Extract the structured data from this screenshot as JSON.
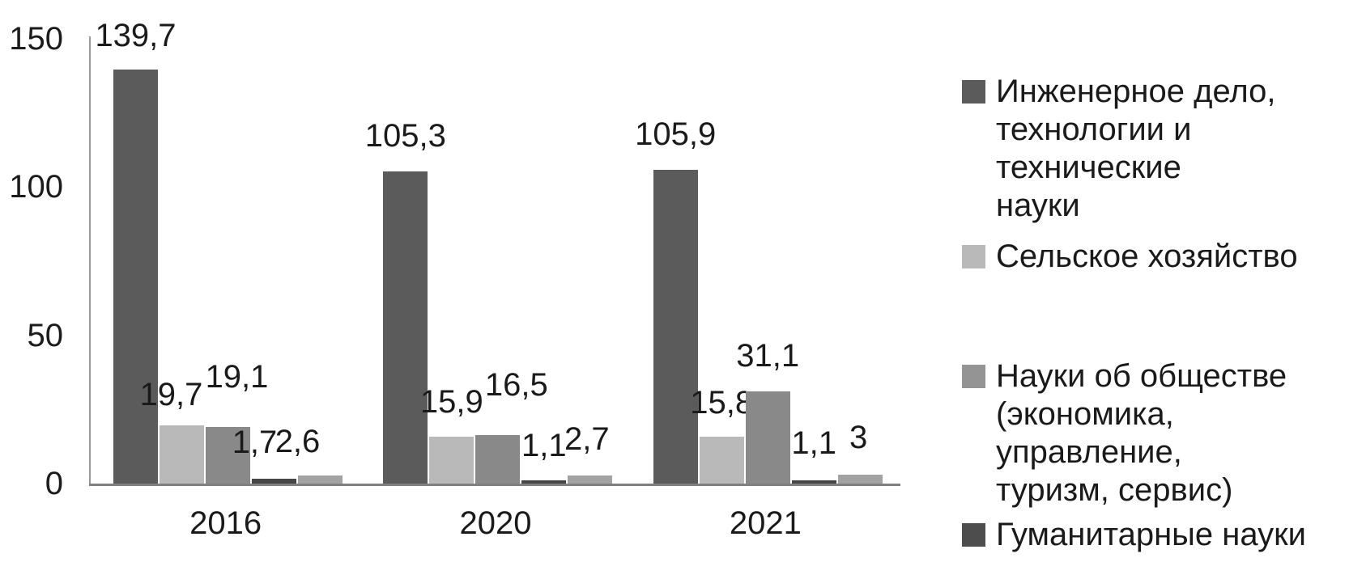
{
  "chart_data": {
    "type": "bar",
    "title": "",
    "categories": [
      "2016",
      "2020",
      "2021"
    ],
    "series": [
      {
        "name": "Инженерное дело, технологии и технические науки",
        "color": "#5b5b5b",
        "values": [
          139.7,
          105.3,
          105.9
        ],
        "data_labels": [
          "139,7",
          "105,3",
          "105,9"
        ],
        "label_dx": [
          0,
          0,
          0
        ],
        "label_dy": [
          -20,
          -22,
          -22
        ]
      },
      {
        "name": "Сельское хозяйство",
        "color": "#b9b9b9",
        "values": [
          19.7,
          15.9,
          15.8
        ],
        "data_labels": [
          "19,7",
          "15,9",
          "15,8"
        ],
        "label_dx": [
          -13,
          0,
          0
        ],
        "label_dy": [
          -16,
          -21,
          -20
        ]
      },
      {
        "name": "Науки об обществе (экономика, управление, туризм, сервис)",
        "color": "#898989",
        "values": [
          19.1,
          16.5,
          31.1
        ],
        "data_labels": [
          "19,1",
          "16,5",
          "31,1"
        ],
        "label_dx": [
          11,
          23,
          0
        ],
        "label_dy": [
          -40,
          -40,
          -22
        ]
      },
      {
        "name": "Гуманитарные науки",
        "color": "#464646",
        "values": [
          1.7,
          1.1,
          1.1
        ],
        "data_labels": [
          "1,7",
          "1,1",
          "1,1"
        ],
        "label_dx": [
          -24,
          0,
          0
        ],
        "label_dy": [
          -23,
          -21,
          -24
        ]
      },
      {
        "name": "",
        "color": "#a3a3a3",
        "values": [
          2.6,
          2.7,
          3
        ],
        "data_labels": [
          "2,6",
          "2,7",
          "3"
        ],
        "label_dx": [
          -28,
          -4,
          -2
        ],
        "label_dy": [
          -20,
          -23,
          -24
        ]
      }
    ],
    "y_axis": {
      "tick_labels": [
        "0",
        "50",
        "100",
        "150"
      ],
      "tick_values": [
        0,
        50,
        100,
        150
      ],
      "ylim": [
        0,
        150
      ]
    },
    "x_labels": [
      "2016",
      "2020",
      "2021"
    ],
    "grid": "off",
    "legend_position": "right"
  },
  "legend": {
    "items": [
      {
        "label": "Инженерное дело,\nтехнологии и технические\nнауки",
        "color": "#5b5b5b"
      },
      {
        "label": "Сельское хозяйство",
        "color": "#b9b9b9"
      },
      {
        "label": "Науки об обществе\n(экономика, управление,\nтуризм, сервис)",
        "color": "#949494"
      },
      {
        "label": "Гуманитарные науки",
        "color": "#4d4d4d"
      }
    ]
  }
}
